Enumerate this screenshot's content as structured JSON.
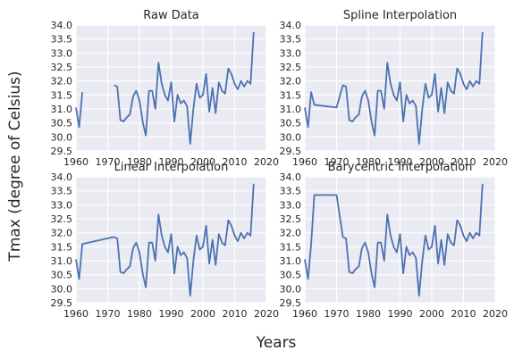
{
  "figure": {
    "ylabel": "Tmax (degree of Celsius)",
    "xlabel": "Years"
  },
  "chart_data": [
    {
      "type": "line",
      "title": "Raw Data",
      "xlim": [
        1960,
        2020
      ],
      "ylim": [
        29.5,
        34.0
      ],
      "xticks": [
        1960,
        1970,
        1980,
        1990,
        2000,
        2010,
        2020
      ],
      "yticks": [
        "29.5",
        "30.0",
        "30.5",
        "31.0",
        "31.5",
        "32.0",
        "32.5",
        "33.0",
        "33.5",
        "34.0"
      ],
      "grid": true,
      "segments": [
        {
          "x": [
            1960,
            1961,
            1962
          ],
          "y": [
            31.05,
            30.35,
            31.6
          ]
        },
        {
          "x": [
            1972,
            1973,
            1974,
            1975,
            1976,
            1977,
            1978,
            1979,
            1980,
            1981,
            1982,
            1983,
            1984,
            1985,
            1986,
            1987,
            1988,
            1989,
            1990,
            1991,
            1992,
            1993,
            1994,
            1995,
            1996,
            1997,
            1998,
            1999,
            2000,
            2001,
            2002,
            2003,
            2004,
            2005,
            2006,
            2007,
            2008,
            2009,
            2010,
            2011,
            2012,
            2013,
            2014,
            2015,
            2016
          ],
          "y": [
            31.85,
            31.8,
            30.6,
            30.55,
            30.7,
            30.8,
            31.45,
            31.65,
            31.3,
            30.55,
            30.05,
            31.65,
            31.65,
            31.0,
            32.65,
            31.9,
            31.5,
            31.3,
            31.95,
            30.55,
            31.5,
            31.2,
            31.3,
            31.1,
            29.75,
            31.0,
            31.9,
            31.4,
            31.5,
            32.25,
            30.9,
            31.75,
            30.85,
            31.95,
            31.65,
            31.55,
            32.45,
            32.25,
            31.9,
            31.7,
            32.0,
            31.8,
            32.0,
            31.9,
            33.75
          ]
        }
      ]
    },
    {
      "type": "line",
      "title": "Spline Interpolation",
      "xlim": [
        1960,
        2020
      ],
      "ylim": [
        29.5,
        34.0
      ],
      "xticks": [
        1960,
        1970,
        1980,
        1990,
        2000,
        2010,
        2020
      ],
      "yticks": [
        "29.5",
        "30.0",
        "30.5",
        "31.0",
        "31.5",
        "32.0",
        "32.5",
        "33.0",
        "33.5",
        "34.0"
      ],
      "grid": true,
      "segments": [
        {
          "x": [
            1960,
            1961,
            1962,
            1963,
            1970,
            1972,
            1973,
            1974,
            1975,
            1976,
            1977,
            1978,
            1979,
            1980,
            1981,
            1982,
            1983,
            1984,
            1985,
            1986,
            1987,
            1988,
            1989,
            1990,
            1991,
            1992,
            1993,
            1994,
            1995,
            1996,
            1997,
            1998,
            1999,
            2000,
            2001,
            2002,
            2003,
            2004,
            2005,
            2006,
            2007,
            2008,
            2009,
            2010,
            2011,
            2012,
            2013,
            2014,
            2015,
            2016
          ],
          "y": [
            31.05,
            30.35,
            31.6,
            31.15,
            31.05,
            31.85,
            31.8,
            30.6,
            30.55,
            30.7,
            30.8,
            31.45,
            31.65,
            31.3,
            30.55,
            30.05,
            31.65,
            31.65,
            31.0,
            32.65,
            31.9,
            31.5,
            31.3,
            31.95,
            30.55,
            31.5,
            31.2,
            31.3,
            31.1,
            29.75,
            31.0,
            31.9,
            31.4,
            31.5,
            32.25,
            30.9,
            31.75,
            30.85,
            31.95,
            31.65,
            31.55,
            32.45,
            32.25,
            31.9,
            31.7,
            32.0,
            31.8,
            32.0,
            31.9,
            33.75
          ]
        }
      ]
    },
    {
      "type": "line",
      "title": "Linear Interpolation",
      "xlim": [
        1960,
        2020
      ],
      "ylim": [
        29.5,
        34.0
      ],
      "xticks": [
        1960,
        1970,
        1980,
        1990,
        2000,
        2010,
        2020
      ],
      "yticks": [
        "29.5",
        "30.0",
        "30.5",
        "31.0",
        "31.5",
        "32.0",
        "32.5",
        "33.0",
        "33.5",
        "34.0"
      ],
      "grid": true,
      "segments": [
        {
          "x": [
            1960,
            1961,
            1962,
            1970,
            1972,
            1973,
            1974,
            1975,
            1976,
            1977,
            1978,
            1979,
            1980,
            1981,
            1982,
            1983,
            1984,
            1985,
            1986,
            1987,
            1988,
            1989,
            1990,
            1991,
            1992,
            1993,
            1994,
            1995,
            1996,
            1997,
            1998,
            1999,
            2000,
            2001,
            2002,
            2003,
            2004,
            2005,
            2006,
            2007,
            2008,
            2009,
            2010,
            2011,
            2012,
            2013,
            2014,
            2015,
            2016
          ],
          "y": [
            31.05,
            30.35,
            31.6,
            31.8,
            31.85,
            31.8,
            30.6,
            30.55,
            30.7,
            30.8,
            31.45,
            31.65,
            31.3,
            30.55,
            30.05,
            31.65,
            31.65,
            31.0,
            32.65,
            31.9,
            31.5,
            31.3,
            31.95,
            30.55,
            31.5,
            31.2,
            31.3,
            31.1,
            29.75,
            31.0,
            31.9,
            31.4,
            31.5,
            32.25,
            30.9,
            31.75,
            30.85,
            31.95,
            31.65,
            31.55,
            32.45,
            32.25,
            31.9,
            31.7,
            32.0,
            31.8,
            32.0,
            31.9,
            33.75
          ]
        }
      ]
    },
    {
      "type": "line",
      "title": "Barycentric Interpolation",
      "xlim": [
        1960,
        2020
      ],
      "ylim": [
        29.5,
        34.0
      ],
      "xticks": [
        1960,
        1970,
        1980,
        1990,
        2000,
        2010,
        2020
      ],
      "yticks": [
        "29.5",
        "30.0",
        "30.5",
        "31.0",
        "31.5",
        "32.0",
        "32.5",
        "33.0",
        "33.5",
        "34.0"
      ],
      "grid": true,
      "segments": [
        {
          "x": [
            1960,
            1961,
            1962,
            1963,
            1970,
            1972,
            1973,
            1974,
            1975,
            1976,
            1977,
            1978,
            1979,
            1980,
            1981,
            1982,
            1983,
            1984,
            1985,
            1986,
            1987,
            1988,
            1989,
            1990,
            1991,
            1992,
            1993,
            1994,
            1995,
            1996,
            1997,
            1998,
            1999,
            2000,
            2001,
            2002,
            2003,
            2004,
            2005,
            2006,
            2007,
            2008,
            2009,
            2010,
            2011,
            2012,
            2013,
            2014,
            2015,
            2016
          ],
          "y": [
            31.05,
            30.35,
            31.6,
            33.35,
            33.35,
            31.85,
            31.8,
            30.6,
            30.55,
            30.7,
            30.8,
            31.45,
            31.65,
            31.3,
            30.55,
            30.05,
            31.65,
            31.65,
            31.0,
            32.65,
            31.9,
            31.5,
            31.3,
            31.95,
            30.55,
            31.5,
            31.2,
            31.3,
            31.1,
            29.75,
            31.0,
            31.9,
            31.4,
            31.5,
            32.25,
            30.9,
            31.75,
            30.85,
            31.95,
            31.65,
            31.55,
            32.45,
            32.25,
            31.9,
            31.7,
            32.0,
            31.8,
            32.0,
            31.9,
            33.75
          ]
        }
      ]
    }
  ],
  "colors": {
    "line": "#4c72b0",
    "panel_bg": "#eaeaf2",
    "grid": "#ffffff"
  }
}
